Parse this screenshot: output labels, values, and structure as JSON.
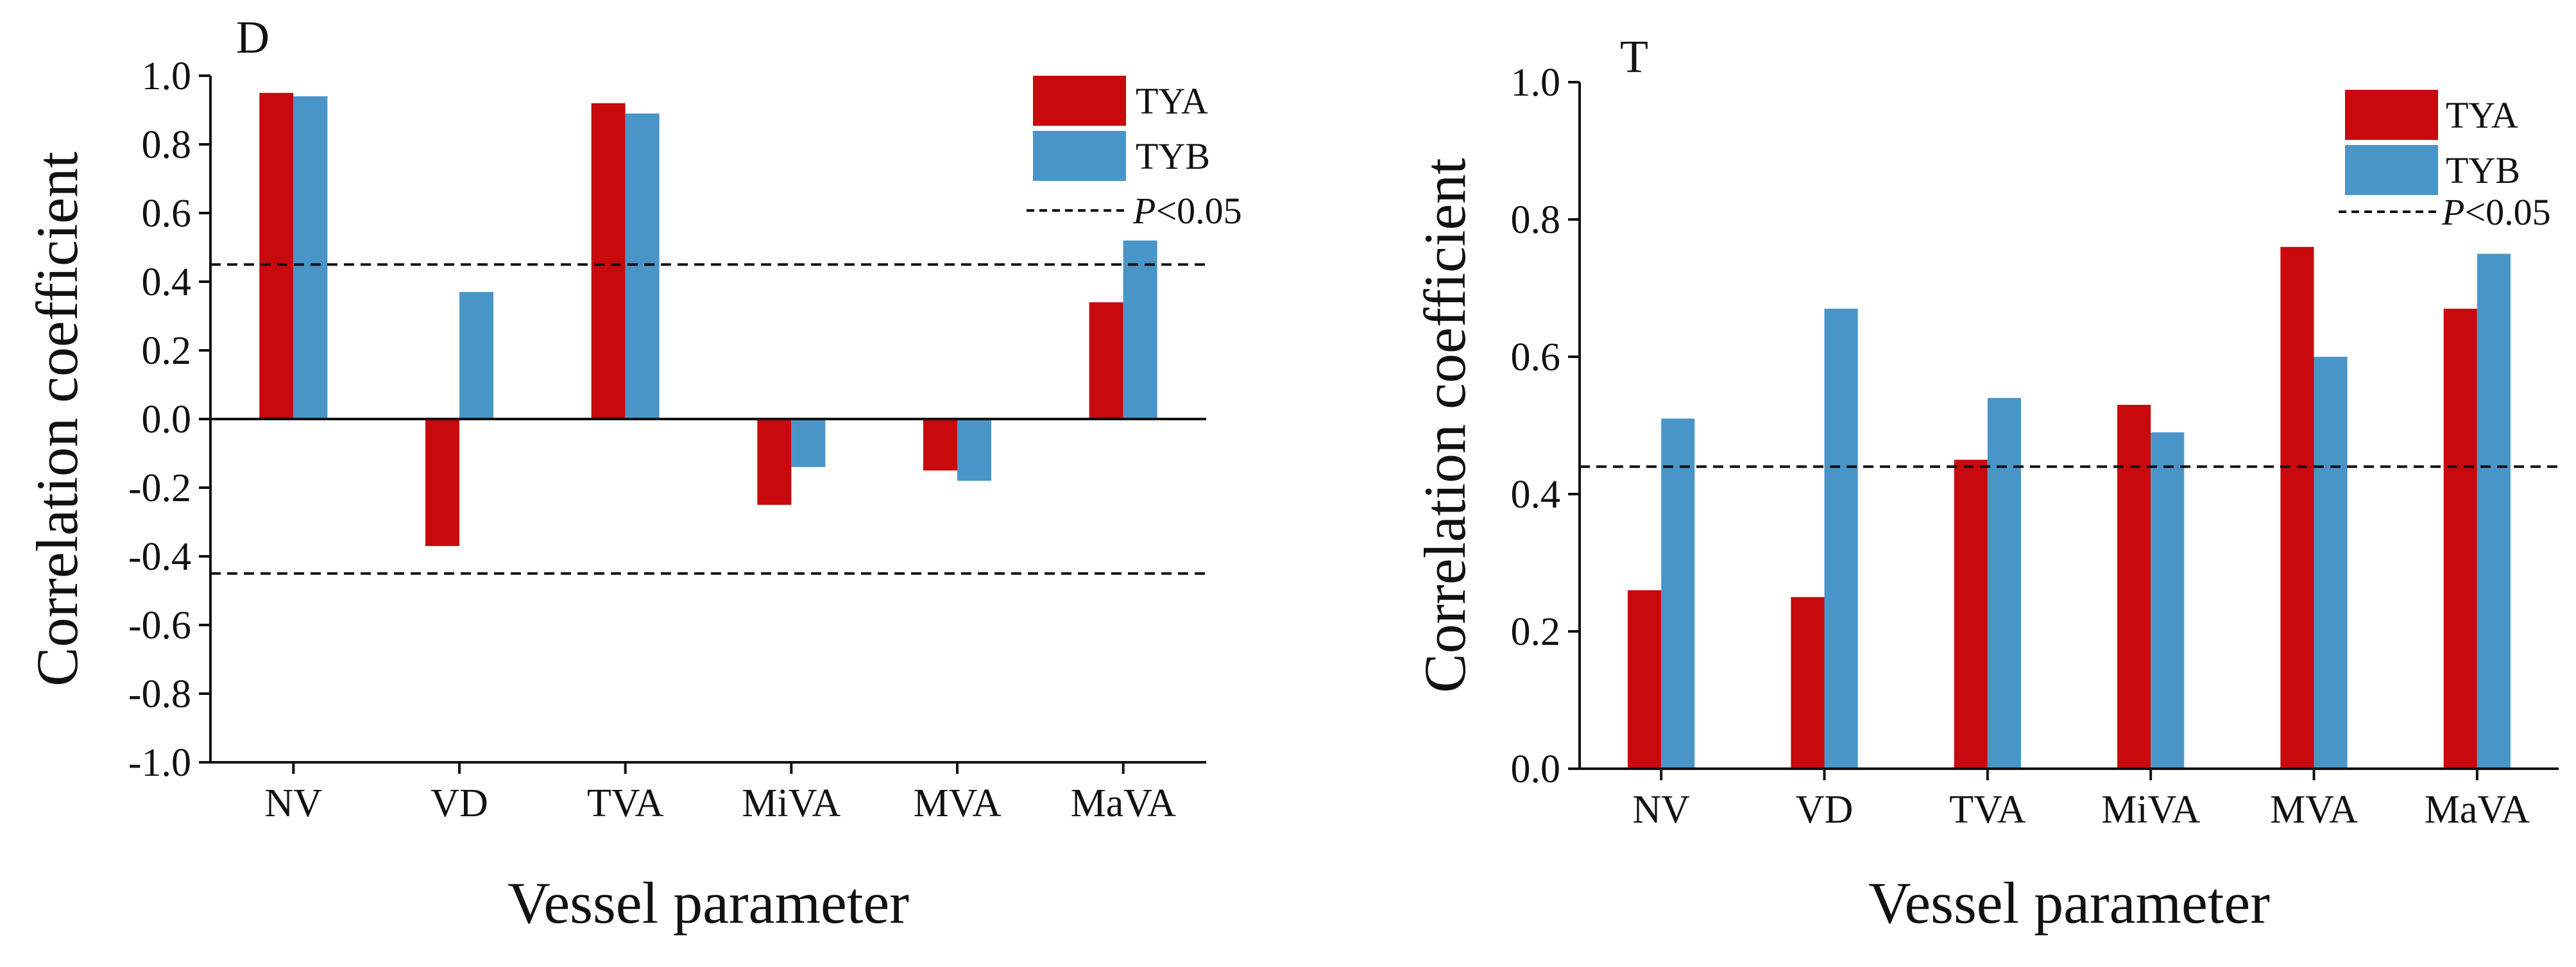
{
  "colors": {
    "tya": "#c8090e",
    "tyb": "#4a95c8",
    "axis": "#111111"
  },
  "chart_data": [
    {
      "type": "bar",
      "panel_label": "D",
      "categories": [
        "NV",
        "VD",
        "TVA",
        "MiVA",
        "MVA",
        "MaVA"
      ],
      "series": [
        {
          "name": "TYA",
          "values": [
            0.95,
            -0.37,
            0.92,
            -0.25,
            -0.15,
            0.34
          ]
        },
        {
          "name": "TYB",
          "values": [
            0.94,
            0.37,
            0.89,
            -0.14,
            -0.18,
            0.52
          ]
        }
      ],
      "ylim": [
        -1.0,
        1.0
      ],
      "yticks": [
        1.0,
        0.8,
        0.6,
        0.4,
        0.2,
        0.0,
        -0.2,
        -0.4,
        -0.6,
        -0.8,
        -1.0
      ],
      "ytick_labels": [
        "1.0",
        "0.8",
        "0.6",
        "0.4",
        "0.2",
        "0.0",
        "-0.2",
        "-0.4",
        "-0.6",
        "-0.8",
        "-1.0"
      ],
      "significance_lines": [
        0.45,
        -0.45
      ],
      "significance_label": {
        "italic": "P",
        "rest": "<0.05"
      },
      "zero_line": true,
      "xlabel": "Vessel parameter",
      "ylabel": "Correlation coefficient",
      "legend": [
        "TYA",
        "TYB"
      ],
      "legend_position": "top-right"
    },
    {
      "type": "bar",
      "panel_label": "T",
      "categories": [
        "NV",
        "VD",
        "TVA",
        "MiVA",
        "MVA",
        "MaVA"
      ],
      "series": [
        {
          "name": "TYA",
          "values": [
            0.26,
            0.25,
            0.45,
            0.53,
            0.76,
            0.67
          ]
        },
        {
          "name": "TYB",
          "values": [
            0.51,
            0.67,
            0.54,
            0.49,
            0.6,
            0.75
          ]
        }
      ],
      "ylim": [
        0.0,
        1.0
      ],
      "yticks": [
        1.0,
        0.8,
        0.6,
        0.4,
        0.2,
        0.0
      ],
      "ytick_labels": [
        "1.0",
        "0.8",
        "0.6",
        "0.4",
        "0.2",
        "0.0"
      ],
      "significance_lines": [
        0.44
      ],
      "significance_label": {
        "italic": "P",
        "rest": "<0.05"
      },
      "zero_line": false,
      "xlabel": "Vessel parameter",
      "ylabel": "Correlation coefficient",
      "legend": [
        "TYA",
        "TYB"
      ],
      "legend_position": "top-right"
    }
  ]
}
